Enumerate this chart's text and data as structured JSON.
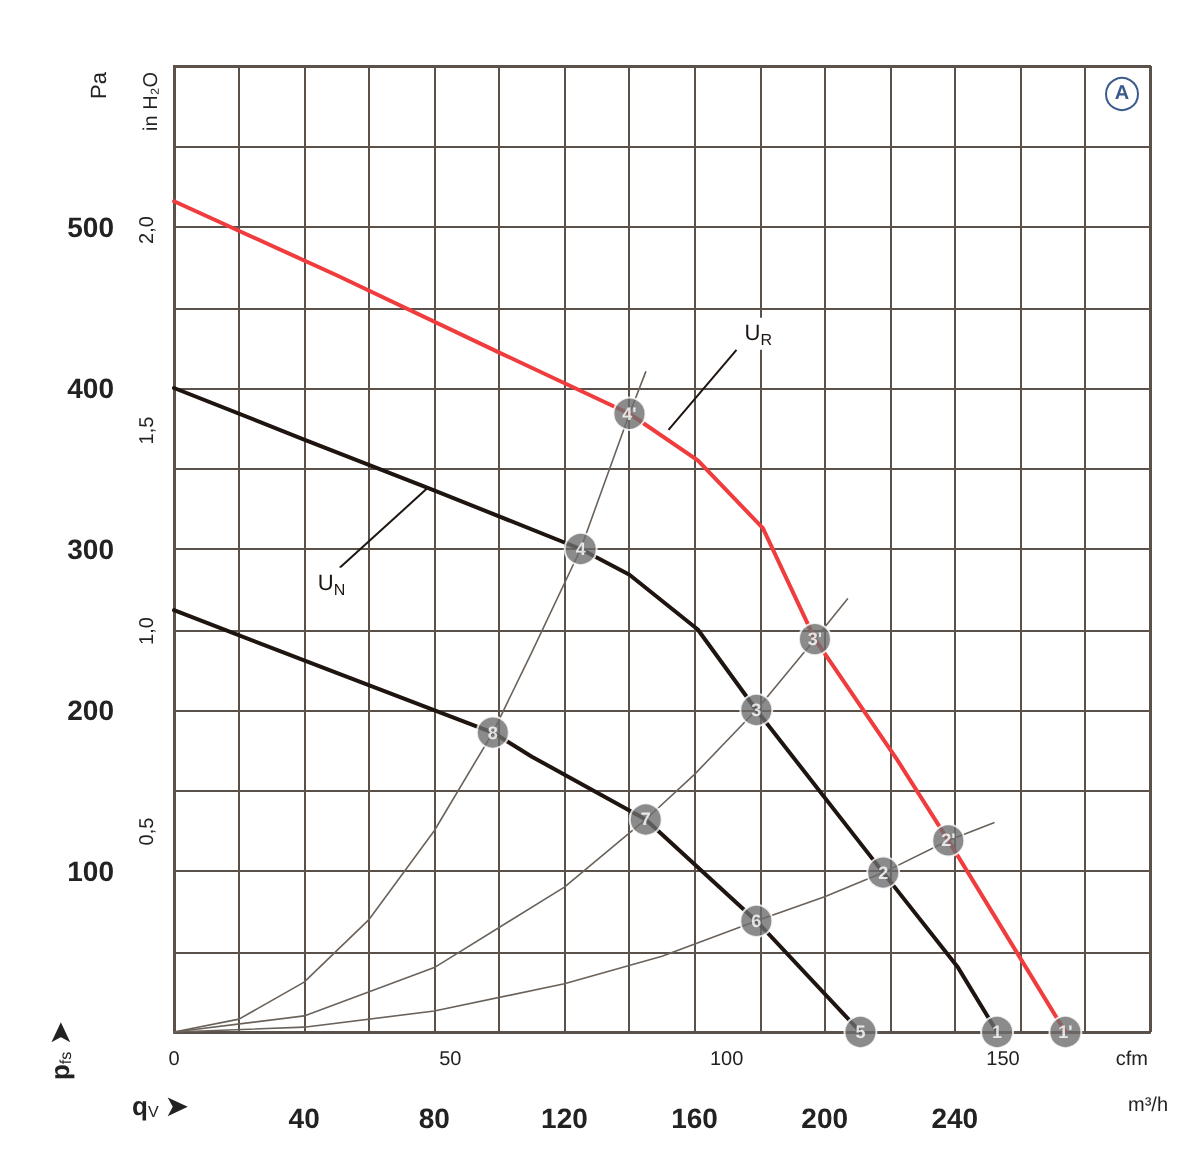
{
  "chart_data": {
    "type": "line",
    "xlabel": "m³/h",
    "x2label": "cfm",
    "ylabel": "Pa",
    "y2label": "in H₂O",
    "xlim": [
      0,
      300
    ],
    "xticks": [
      {
        "value": 0,
        "label": null
      },
      {
        "value": 20,
        "label": null
      },
      40,
      {
        "value": 60,
        "label": null
      },
      80,
      {
        "value": 100,
        "label": null
      },
      120,
      {
        "value": 140,
        "label": null
      },
      160,
      {
        "value": 180,
        "label": null
      },
      200,
      {
        "value": 220,
        "label": null
      },
      240,
      {
        "value": 260,
        "label": null
      },
      {
        "value": 280,
        "label": null
      },
      {
        "value": 300,
        "label": null
      }
    ],
    "x2lim": [
      0,
      176.6
    ],
    "x2ticks": [
      0,
      50,
      100,
      150
    ],
    "ylim": [
      0,
      600
    ],
    "yticks": [
      {
        "value": 0,
        "label": null
      },
      {
        "value": 50,
        "label": null
      },
      100,
      {
        "value": 150,
        "label": null
      },
      200,
      {
        "value": 250,
        "label": null
      },
      300,
      {
        "value": 350,
        "label": null
      },
      400,
      {
        "value": 450,
        "label": null
      },
      500,
      {
        "value": 550,
        "label": null
      },
      {
        "value": 600,
        "label": null
      }
    ],
    "y2lim": [
      0,
      2.409
    ],
    "y2ticks": [
      {
        "value": 0.5,
        "label": "0,5"
      },
      {
        "value": 1.0,
        "label": "1,0"
      },
      {
        "value": 1.5,
        "label": "1,5"
      },
      {
        "value": 2.0,
        "label": "2,0"
      }
    ],
    "grid": true,
    "line_style": "solid",
    "series": [
      {
        "color": "#f03c3c",
        "x": [
          0,
          50,
          100,
          140,
          161,
          181,
          197,
          222,
          238,
          274
        ],
        "values": [
          516,
          470,
          422,
          384,
          355,
          313,
          244,
          170,
          119,
          0
        ]
      },
      {
        "color": "#1e1410",
        "x": [
          0,
          40,
          78,
          125,
          140,
          161,
          179,
          218,
          241,
          253
        ],
        "values": [
          400,
          368,
          338,
          300,
          284,
          250,
          200,
          99,
          40,
          0
        ]
      },
      {
        "color": "#1e1410",
        "x": [
          0,
          50,
          98,
          110,
          145,
          179,
          211
        ],
        "values": [
          262,
          223,
          186,
          171,
          132,
          69,
          0
        ]
      },
      {
        "color": "#6a625a",
        "x": [
          0,
          20,
          40,
          60,
          80,
          98,
          110,
          125,
          140,
          145
        ],
        "values": [
          0,
          8,
          31,
          70,
          125,
          186,
          236,
          300,
          384,
          410
        ]
      },
      {
        "color": "#6a625a",
        "x": [
          0,
          40,
          80,
          120,
          145,
          160,
          179,
          197,
          207
        ],
        "values": [
          0,
          10,
          40,
          90,
          132,
          160,
          200,
          244,
          269
        ]
      },
      {
        "color": "#6a625a",
        "x": [
          0,
          40,
          80,
          120,
          150,
          179,
          200,
          218,
          238,
          252
        ],
        "values": [
          0,
          3,
          13,
          30,
          47,
          69,
          84,
          99,
          119,
          130
        ]
      }
    ],
    "annotations": [
      {
        "text": "U$_{R}$",
        "x": 152,
        "y": 374
      },
      {
        "text": "U$_{N}$",
        "x": 78,
        "y": 338
      },
      {
        "text": "1",
        "x": 253,
        "y": 0
      },
      {
        "text": "2",
        "x": 218,
        "y": 99
      },
      {
        "text": "3",
        "x": 179,
        "y": 200
      },
      {
        "text": "4",
        "x": 125,
        "y": 300
      },
      {
        "text": "5",
        "x": 211,
        "y": 0
      },
      {
        "text": "6",
        "x": 179,
        "y": 69
      },
      {
        "text": "7",
        "x": 145,
        "y": 132
      },
      {
        "text": "8",
        "x": 98,
        "y": 186
      },
      {
        "text": "1'",
        "x": 274,
        "y": 0
      },
      {
        "text": "2'",
        "x": 238,
        "y": 119
      },
      {
        "text": "3'",
        "x": 197,
        "y": 244
      },
      {
        "text": "4'",
        "x": 140,
        "y": 384
      },
      "A",
      "p$_{fs}$ ➤",
      "q$_{V}$ ➤"
    ]
  }
}
